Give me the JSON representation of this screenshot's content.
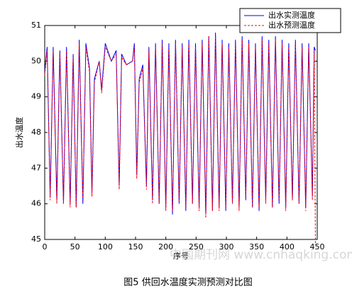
{
  "chart_data": {
    "type": "line",
    "ylabel": "出水温度",
    "xlabel": "序号",
    "caption": "图5 供回水温度实测预测对比图",
    "watermark": "中国期刊网 www.cnhaqking.com",
    "x": [
      0,
      4,
      9,
      14,
      20,
      25,
      31,
      36,
      42,
      47,
      52,
      57,
      63,
      68,
      74,
      78,
      82,
      90,
      94,
      100,
      110,
      118,
      123,
      127,
      135,
      145,
      148,
      152,
      156,
      162,
      168,
      172,
      178,
      183,
      189,
      194,
      200,
      205,
      211,
      216,
      222,
      227,
      233,
      238,
      244,
      249,
      255,
      260,
      266,
      271,
      277,
      282,
      288,
      293,
      299,
      304,
      310,
      315,
      321,
      326,
      332,
      337,
      343,
      348,
      354,
      359,
      365,
      370,
      376,
      381,
      387,
      392,
      398,
      403,
      409,
      414,
      420,
      425,
      431,
      436,
      442,
      445,
      447
    ],
    "series": [
      {
        "name": "出水实测温度",
        "color": "#0000ff",
        "values": [
          49.7,
          50.4,
          46.2,
          50.4,
          46.1,
          50.3,
          46.0,
          50.4,
          46.0,
          50.2,
          45.9,
          50.6,
          46.0,
          50.5,
          49.8,
          46.3,
          49.5,
          50.0,
          49.2,
          50.5,
          50.0,
          50.3,
          46.5,
          50.2,
          49.9,
          50.0,
          50.5,
          46.8,
          49.5,
          49.9,
          46.5,
          50.4,
          46.1,
          50.5,
          46.0,
          50.6,
          45.9,
          50.5,
          45.7,
          50.6,
          46.0,
          50.5,
          45.8,
          50.6,
          46.0,
          50.5,
          45.9,
          50.6,
          45.7,
          50.7,
          45.8,
          50.8,
          45.9,
          50.6,
          45.8,
          50.5,
          46.0,
          50.6,
          45.9,
          50.7,
          46.1,
          50.6,
          45.9,
          50.5,
          45.8,
          50.7,
          46.1,
          50.6,
          45.9,
          50.7,
          46.0,
          50.6,
          45.9,
          50.5,
          46.1,
          50.6,
          46.0,
          50.5,
          45.9,
          50.5,
          46.2,
          50.4,
          50.3
        ]
      },
      {
        "name": "出水预测温度",
        "color": "#ff0000",
        "values": [
          49.6,
          50.3,
          46.1,
          50.3,
          46.0,
          50.2,
          46.0,
          50.3,
          45.9,
          50.1,
          45.9,
          50.5,
          46.1,
          50.4,
          49.7,
          46.2,
          49.4,
          50.0,
          49.1,
          50.4,
          50.0,
          50.2,
          46.4,
          50.1,
          49.9,
          50.0,
          50.4,
          46.7,
          49.4,
          49.8,
          46.4,
          50.3,
          46.0,
          50.4,
          46.0,
          50.5,
          45.8,
          50.4,
          45.8,
          50.5,
          46.0,
          50.4,
          45.9,
          50.5,
          46.0,
          50.4,
          45.8,
          50.5,
          45.6,
          50.7,
          45.8,
          50.7,
          45.8,
          50.5,
          45.9,
          50.4,
          46.0,
          50.5,
          45.8,
          50.6,
          46.2,
          50.5,
          45.9,
          50.4,
          45.9,
          50.6,
          46.0,
          50.5,
          45.9,
          50.6,
          46.1,
          50.5,
          45.8,
          50.4,
          46.1,
          50.5,
          46.0,
          50.4,
          45.8,
          50.4,
          46.1,
          50.3,
          44.9
        ]
      }
    ],
    "xlim": [
      0,
      450
    ],
    "xticks": [
      0,
      50,
      100,
      150,
      200,
      250,
      300,
      350,
      400,
      450
    ],
    "ylim": [
      45,
      51
    ],
    "yticks": [
      45,
      46,
      47,
      48,
      49,
      50,
      51
    ],
    "legend": "upper right"
  }
}
